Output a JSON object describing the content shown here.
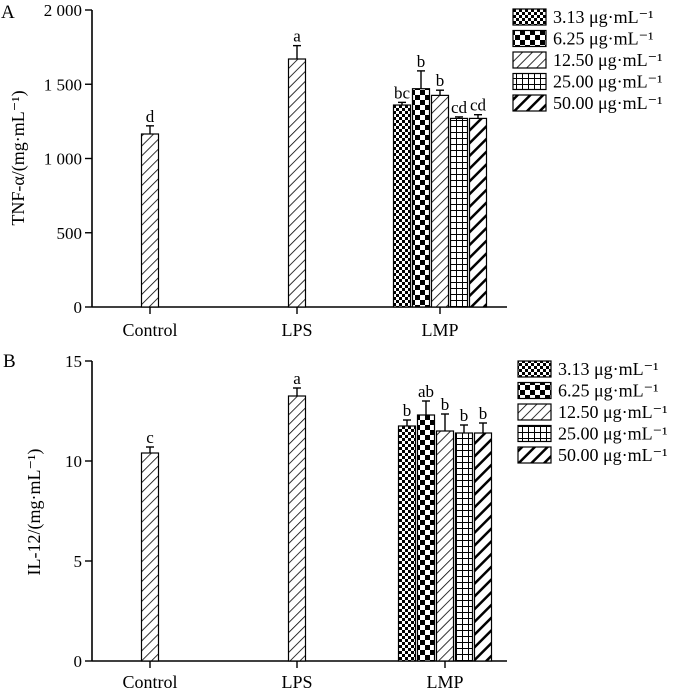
{
  "chart_data": [
    {
      "type": "bar",
      "panel": "A",
      "ylabel": "TNF-α/(mg·mL⁻¹)",
      "ylim": [
        0,
        2000
      ],
      "yticks": [
        0,
        500,
        1000,
        1500,
        2000
      ],
      "ytick_labels": [
        "0",
        "500",
        "1 000",
        "1 500",
        "2 000"
      ],
      "categories": [
        "Control",
        "LPS",
        "LMP"
      ],
      "legend": [
        "3.13 μg·mL⁻¹",
        "6.25 μg·mL⁻¹",
        "12.50 μg·mL⁻¹",
        "25.00 μg·mL⁻¹",
        "50.00 μg·mL⁻¹"
      ],
      "bars": [
        {
          "group": "Control",
          "pattern": "diag",
          "value": 1165,
          "error": 55,
          "label": "d"
        },
        {
          "group": "LPS",
          "pattern": "diag",
          "value": 1670,
          "error": 90,
          "label": "a"
        },
        {
          "group": "LMP",
          "pattern": "checker-small",
          "value": 1360,
          "error": 18,
          "label": "bc"
        },
        {
          "group": "LMP",
          "pattern": "checker-big",
          "value": 1470,
          "error": 120,
          "label": "b"
        },
        {
          "group": "LMP",
          "pattern": "diag",
          "value": 1425,
          "error": 35,
          "label": "b"
        },
        {
          "group": "LMP",
          "pattern": "grid",
          "value": 1270,
          "error": 10,
          "label": "cd"
        },
        {
          "group": "LMP",
          "pattern": "thick-diag",
          "value": 1270,
          "error": 25,
          "label": "cd"
        }
      ]
    },
    {
      "type": "bar",
      "panel": "B",
      "ylabel": "IL-12/(mg·mL⁻¹)",
      "ylim": [
        0,
        15
      ],
      "yticks": [
        0,
        5,
        10,
        15
      ],
      "ytick_labels": [
        "0",
        "5",
        "10",
        "15"
      ],
      "categories": [
        "Control",
        "LPS",
        "LMP"
      ],
      "legend": [
        "3.13 μg·mL⁻¹",
        "6.25 μg·mL⁻¹",
        "12.50 μg·mL⁻¹",
        "25.00 μg·mL⁻¹",
        "50.00 μg·mL⁻¹"
      ],
      "bars": [
        {
          "group": "Control",
          "pattern": "diag",
          "value": 10.4,
          "error": 0.3,
          "label": "c"
        },
        {
          "group": "LPS",
          "pattern": "diag",
          "value": 13.25,
          "error": 0.4,
          "label": "a"
        },
        {
          "group": "LMP",
          "pattern": "checker-small",
          "value": 11.75,
          "error": 0.3,
          "label": "b"
        },
        {
          "group": "LMP",
          "pattern": "checker-big",
          "value": 12.3,
          "error": 0.7,
          "label": "ab"
        },
        {
          "group": "LMP",
          "pattern": "diag",
          "value": 11.5,
          "error": 0.85,
          "label": "b"
        },
        {
          "group": "LMP",
          "pattern": "grid",
          "value": 11.4,
          "error": 0.4,
          "label": "b"
        },
        {
          "group": "LMP",
          "pattern": "thick-diag",
          "value": 11.4,
          "error": 0.5,
          "label": "b"
        }
      ]
    }
  ]
}
